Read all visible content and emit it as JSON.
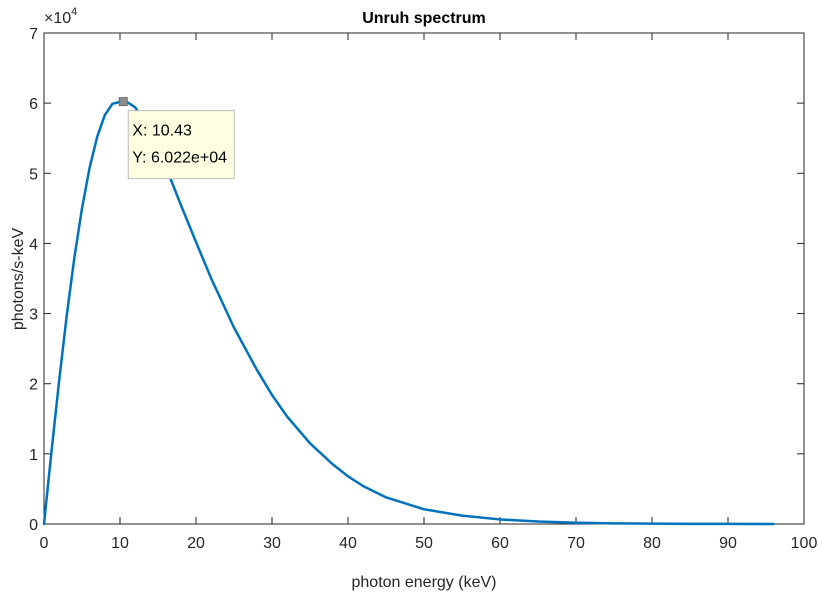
{
  "chart_data": {
    "type": "line",
    "title": "Unruh spectrum",
    "xlabel": "photon energy (keV)",
    "ylabel": "photons/s-keV",
    "xlim": [
      0,
      100
    ],
    "ylim": [
      0,
      70000
    ],
    "x_ticks": [
      0,
      10,
      20,
      30,
      40,
      50,
      60,
      70,
      80,
      90,
      100
    ],
    "x_tick_labels": [
      "0",
      "10",
      "20",
      "30",
      "40",
      "50",
      "60",
      "70",
      "80",
      "90",
      "100"
    ],
    "y_ticks": [
      0,
      10000,
      20000,
      30000,
      40000,
      50000,
      60000,
      70000
    ],
    "y_tick_labels": [
      "0",
      "1",
      "2",
      "3",
      "4",
      "5",
      "6",
      "7"
    ],
    "y_exponent_base": "×10",
    "y_exponent_power": "4",
    "grid": false,
    "legend": "none",
    "series": [
      {
        "color": "#0072BD",
        "x": [
          0,
          1,
          2,
          3,
          4,
          5,
          6,
          7,
          8,
          9,
          10,
          10.43,
          11,
          12,
          14,
          16,
          18,
          20,
          22,
          25,
          28,
          30,
          32,
          35,
          38,
          40,
          42,
          45,
          50,
          55,
          60,
          65,
          70,
          75,
          80,
          85,
          90,
          96
        ],
        "y": [
          0,
          10500,
          20500,
          29800,
          38000,
          45000,
          50800,
          55200,
          58300,
          59900,
          60180,
          60220,
          60100,
          59400,
          56000,
          51000,
          45500,
          40200,
          35000,
          28000,
          22000,
          18400,
          15300,
          11500,
          8500,
          6800,
          5400,
          3800,
          2100,
          1200,
          650,
          350,
          180,
          95,
          50,
          25,
          12,
          5
        ]
      }
    ],
    "datatip": {
      "x_text": "X: 10.43",
      "y_text": "Y: 6.022e+04",
      "x": 10.43,
      "y": 60220
    }
  }
}
